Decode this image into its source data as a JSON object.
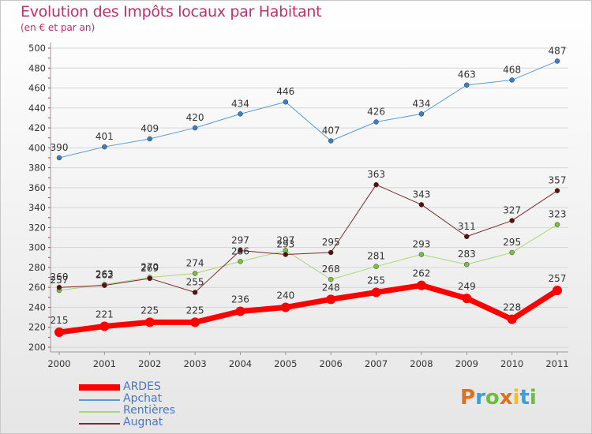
{
  "title": "Evolution des Impôts locaux par Habitant",
  "subtitle": "(en € et par an)",
  "logo": {
    "text": "Proxiti",
    "colors": [
      "#e07020",
      "#3aa0d8",
      "#6cbf3c",
      "#e07020",
      "#f0c020",
      "#3aa0d8",
      "#6cbf3c"
    ]
  },
  "chart_data": {
    "type": "line",
    "title": "Evolution des Impôts locaux par Habitant",
    "subtitle": "(en € et par an)",
    "x": [
      "2000",
      "2001",
      "2002",
      "2003",
      "2004",
      "2005",
      "2006",
      "2007",
      "2008",
      "2009",
      "2010",
      "2011"
    ],
    "ylim": [
      200,
      500
    ],
    "yticks": [
      200,
      220,
      240,
      260,
      280,
      300,
      320,
      340,
      360,
      380,
      400,
      420,
      440,
      460,
      480,
      500
    ],
    "grid": "horizontal",
    "series": [
      {
        "name": "Apchat",
        "color": "#5b9bd5",
        "marker": "#3a7fc0",
        "width": 1,
        "values": [
          390,
          401,
          409,
          420,
          434,
          446,
          407,
          426,
          434,
          463,
          468,
          487
        ]
      },
      {
        "name": "Rentières",
        "color": "#a8d878",
        "marker": "#7cc040",
        "width": 1,
        "values": [
          257,
          263,
          270,
          274,
          286,
          297,
          268,
          281,
          293,
          283,
          295,
          323
        ]
      },
      {
        "name": "Augnat",
        "color": "#7a2a2a",
        "marker": "#5a1010",
        "width": 1,
        "values": [
          260,
          262,
          269,
          255,
          297,
          293,
          295,
          363,
          343,
          311,
          327,
          357
        ]
      },
      {
        "name": "ARDES",
        "color": "#ff0000",
        "marker": "#ff0000",
        "width": 7,
        "values": [
          215,
          221,
          225,
          225,
          236,
          240,
          248,
          255,
          262,
          249,
          228,
          257
        ]
      }
    ],
    "legend": [
      "ARDES",
      "Apchat",
      "Rentières",
      "Augnat"
    ],
    "legend_position": "bottom-left"
  }
}
